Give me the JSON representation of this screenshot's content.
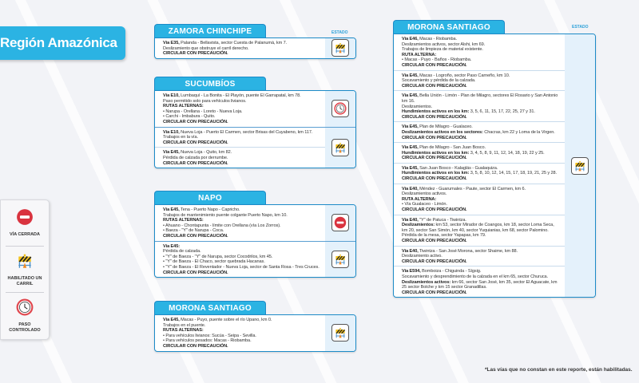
{
  "region_title": "Región Amazónica",
  "estado_label": "ESTADO",
  "legend": [
    {
      "icon": "via-cerrada",
      "label": "VÍA CERRADA"
    },
    {
      "icon": "habilitado-un-carril",
      "label": "HABILITADO UN CARRIL"
    },
    {
      "icon": "paso-controlado",
      "label": "PASO CONTROLADO"
    }
  ],
  "colors": {
    "accent": "#2bb3e3",
    "border": "#1d8bc8",
    "closed": "#d9333f",
    "barrier": "#f2c21b"
  },
  "cards": [
    {
      "title": "ZAMORA CHINCHIPE",
      "groups": [
        {
          "icon": "habilitado-un-carril",
          "rows": [
            [
              {
                "k": "via",
                "b": "Vía E35,",
                "t": " Palanda - Bellavista, sector Cuesta de Palanumá, km 7."
              },
              {
                "k": "p",
                "t": "Deslizamiento que obstruye el carril derecho."
              },
              {
                "k": "c",
                "t": "CIRCULAR CON PRECAUCIÓN."
              }
            ]
          ]
        }
      ]
    },
    {
      "title": "SUCUMBÍOS",
      "groups": [
        {
          "icon": "paso-controlado",
          "rows": [
            [
              {
                "k": "via",
                "b": "Vía E10,",
                "t": " Lumbaquí - La Bonita - El Playón, puente El Garrapatal, km 78."
              },
              {
                "k": "p",
                "t": "Paso permitido solo para vehículos livianos."
              },
              {
                "k": "c",
                "t": "RUTAS ALTERNAS:"
              },
              {
                "k": "li",
                "t": "Narupa - Orellana - Loreto - Nueva Loja."
              },
              {
                "k": "li",
                "t": "Carchi - Imbabura - Quito."
              },
              {
                "k": "c",
                "t": "CIRCULAR CON PRECAUCIÓN."
              }
            ]
          ]
        },
        {
          "icon": "habilitado-un-carril",
          "rows": [
            [
              {
                "k": "via",
                "b": "Vía E10,",
                "t": " Nueva Loja - Puerto El Carmen, sector Brisas del Cuyabeno, km 117."
              },
              {
                "k": "p",
                "t": "Trabajos en la vía."
              },
              {
                "k": "c",
                "t": "CIRCULAR CON PRECAUCIÓN."
              }
            ],
            [
              {
                "k": "via",
                "b": "Vía E45,",
                "t": " Nueva Loja - Quito, km 82."
              },
              {
                "k": "p",
                "t": "Pérdida de calzada por derrumbe."
              },
              {
                "k": "c",
                "t": "CIRCULAR CON PRECAUCIÓN."
              }
            ]
          ]
        }
      ]
    },
    {
      "title": "NAPO",
      "groups": [
        {
          "icon": "via-cerrada",
          "rows": [
            [
              {
                "k": "via",
                "b": "Vía E45,",
                "t": " Tena - Puerto Napo - Capricho."
              },
              {
                "k": "p",
                "t": "Trabajos de mantenimiento puente colgante Puerto Napo, km 10."
              },
              {
                "k": "c",
                "t": "RUTAS ALTERNAS:"
              },
              {
                "k": "li",
                "t": "Ahuano - Chontapunta - límite con Orellana (vía Los Zorros)."
              },
              {
                "k": "li",
                "t": "Baeza - \"Y\" de Narupa - Coca."
              },
              {
                "k": "c",
                "t": "CIRCULAR CON PRECAUCIÓN."
              }
            ]
          ]
        },
        {
          "icon": "habilitado-un-carril",
          "rows": [
            [
              {
                "k": "via",
                "b": "Vía E45:",
                "t": ""
              },
              {
                "k": "p",
                "t": "Pérdida de calzada."
              },
              {
                "k": "li",
                "t": "\"Y\" de Baeza - \"Y\" de Narupa, sector Cocodrilos, km 45."
              },
              {
                "k": "li",
                "t": "\"Y\" de Baeza - El Chaco, sector quebrada Hacanas."
              },
              {
                "k": "li",
                "t": "\"Y\" de Baeza - El Reventador - Nueva Loja, sector de Santa Rosa - Tres Cruces."
              },
              {
                "k": "c",
                "t": "CIRCULAR CON PRECAUCIÓN."
              }
            ]
          ]
        }
      ]
    },
    {
      "title": "MORONA SANTIAGO",
      "groups": [
        {
          "icon": "habilitado-un-carril",
          "rows": [
            [
              {
                "k": "via",
                "b": "Vía E45,",
                "t": " Macas - Puyo, puente sobre el río Upano, km 0."
              },
              {
                "k": "p",
                "t": "Trabajos en el puente."
              },
              {
                "k": "c",
                "t": "RUTAS ALTERNAS:"
              },
              {
                "k": "li",
                "t": "Para vehículos livianos: Sucúa - Seipa - Sevilla."
              },
              {
                "k": "li",
                "t": "Para vehículos pesados: Macas - Riobamba."
              },
              {
                "k": "c",
                "t": "CIRCULAR CON PRECAUCIÓN."
              }
            ]
          ]
        }
      ]
    },
    {
      "title": "MORONA SANTIAGO",
      "groups": [
        {
          "icon": "habilitado-un-carril",
          "rows": [
            [
              {
                "k": "via",
                "b": "Vía E46,",
                "t": " Macas - Riobamba."
              },
              {
                "k": "p",
                "t": "Deslizamientos activos, sector Alshi, km 69."
              },
              {
                "k": "p",
                "t": "Trabajos de limpieza de material existente."
              },
              {
                "k": "c",
                "t": "RUTA ALTERNA:"
              },
              {
                "k": "li",
                "t": "Macas - Puyo - Baños - Riobamba."
              },
              {
                "k": "c",
                "t": "CIRCULAR CON PRECAUCIÓN."
              }
            ],
            [
              {
                "k": "via",
                "b": "Vía E45,",
                "t": " Macas - Logroño, sector Paso Carneño, km 10."
              },
              {
                "k": "p",
                "t": "Socavamiento y pérdida de la calzada."
              },
              {
                "k": "c",
                "t": "CIRCULAR CON PRECAUCIÓN."
              }
            ],
            [
              {
                "k": "via",
                "b": "Vía E45,",
                "t": " Bella Unión - Limón - Plan de Milagro, sectores El Rosario y San Antonio km 16."
              },
              {
                "k": "p",
                "t": "Deslizamientos."
              },
              {
                "k": "bp",
                "b": "Hundimientos activos en los km:",
                "t": " 3, 5, 6, 11, 15, 17, 22, 25, 27 y 31."
              },
              {
                "k": "c",
                "t": "CIRCULAR CON PRECAUCIÓN."
              }
            ],
            [
              {
                "k": "via",
                "b": "Vía E45,",
                "t": " Plan de Milagro - Gualaceo."
              },
              {
                "k": "bp",
                "b": "Deslizamientos activos en los sectores:",
                "t": " Chacras, km 22 y Loma de la Virgen."
              },
              {
                "k": "c",
                "t": "CIRCULAR CON PRECAUCIÓN."
              }
            ],
            [
              {
                "k": "via",
                "b": "Vía E45,",
                "t": " Plan de Milagro - San Juan Bosco."
              },
              {
                "k": "bp",
                "b": "Hundimientos activos en los km:",
                "t": " 3, 4, 5, 8, 9, 11, 12, 14, 18, 19, 22 y 25."
              },
              {
                "k": "c",
                "t": "CIRCULAR CON PRECAUCIÓN."
              }
            ],
            [
              {
                "k": "via",
                "b": "Vía E45,",
                "t": " San Juan Bosco - Kalaglás - Gualaquiza."
              },
              {
                "k": "bp",
                "b": "Hundimientos activos en los km:",
                "t": " 3, 5, 8, 10, 12, 14, 15, 17, 18, 19, 21, 25 y 28."
              },
              {
                "k": "c",
                "t": "CIRCULAR CON PRECAUCIÓN."
              }
            ],
            [
              {
                "k": "via",
                "b": "Vía E40,",
                "t": " Méndez - Guarumales - Paute, sector El Carmen, km 6."
              },
              {
                "k": "p",
                "t": "Deslizamientos activos."
              },
              {
                "k": "c",
                "t": "RUTA ALTERNA:"
              },
              {
                "k": "li",
                "t": "Vía Gualaceo - Limón."
              },
              {
                "k": "c",
                "t": "CIRCULAR CON PRECAUCIÓN."
              }
            ],
            [
              {
                "k": "via",
                "b": "Vía E40,",
                "t": " \"Y\" de Patuca - Tiwintza."
              },
              {
                "k": "bp",
                "b": "Deslizamientos:",
                "t": " km 53, sector Mirador de Coangos, km 18, sector Loma Seca, km 20, sector San Simón, km 40, sector Yuquianias, km 68, sector Palomino."
              },
              {
                "k": "p",
                "t": "Pérdida de la mesa, sector Yapapas, km 79."
              },
              {
                "k": "c",
                "t": "CIRCULAR CON PRECAUCIÓN."
              }
            ],
            [
              {
                "k": "via",
                "b": "Vía E40,",
                "t": " Tiwintza - San José Morona, sector Shaime, km 88."
              },
              {
                "k": "p",
                "t": "Deslizamiento activo."
              },
              {
                "k": "c",
                "t": "CIRCULAR CON PRECAUCIÓN."
              }
            ],
            [
              {
                "k": "via",
                "b": "Vía E594,",
                "t": " Bomboiza - Chiguinda - Sígsig."
              },
              {
                "k": "p",
                "t": "Socavamiento y desprendimiento de la calzada en el km 65, sector Churuca."
              },
              {
                "k": "bp",
                "b": "Deslizamientos activos:",
                "t": " km 66, sector San José, km 35, sector El Aguacate, km 25 sector Bolche y km 15 sector Granadillas."
              },
              {
                "k": "c",
                "t": "CIRCULAR CON PRECAUCIÓN."
              }
            ]
          ]
        }
      ]
    }
  ],
  "footnote": "*Las vías que no constan en este reporte, están habilitadas."
}
